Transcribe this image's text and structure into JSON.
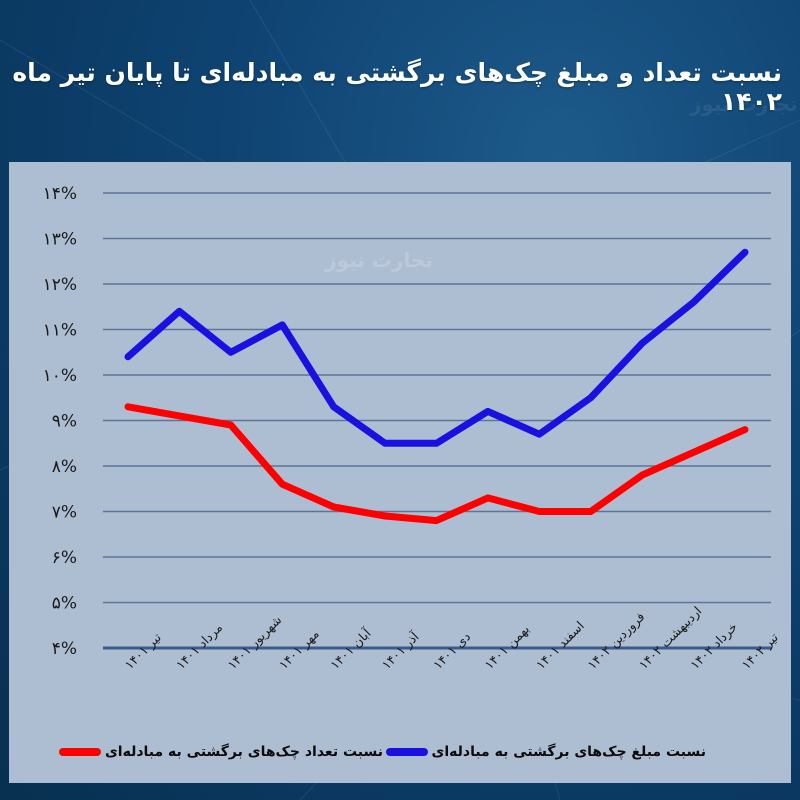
{
  "title": "نسبت تعداد و مبلغ چک‌های برگشتی به مبادله‌ای تا پایان تیر ماه ۱۴۰۲",
  "watermark": "تجارت نیوز",
  "colors": {
    "background": "#0f4473",
    "panel": "#aebed2",
    "grid": "#5a7596",
    "axis": "#3b5a8c",
    "series_count": "#ff0000",
    "series_amount": "#1a10e0"
  },
  "legend": [
    {
      "label": "نسبت مبلغ چک‌های برگشتی به مبادله‌ای",
      "color": "#1a10e0"
    },
    {
      "label": "نسبت تعداد چک‌های برگشتی به مبادله‌ای",
      "color": "#ff0000"
    }
  ],
  "chart_data": {
    "type": "line",
    "title": "نسبت تعداد و مبلغ چک‌های برگشتی به مبادله‌ای تا پایان تیر ماه ۱۴۰۲",
    "xlabel": "",
    "ylabel": "",
    "ylim": [
      4,
      14
    ],
    "y_ticks": [
      4,
      5,
      6,
      7,
      8,
      9,
      10,
      11,
      12,
      13,
      14
    ],
    "y_tick_labels": [
      "۴%",
      "۵%",
      "۶%",
      "۷%",
      "۸%",
      "۹%",
      "۱۰%",
      "۱۱%",
      "۱۲%",
      "۱۳%",
      "۱۴%"
    ],
    "grid": true,
    "legend_position": "bottom",
    "categories": [
      "تیر ۱۴۰۱",
      "مرداد ۱۴۰۱",
      "شهریور ۱۴۰۱",
      "مهر ۱۴۰۱",
      "آبان ۱۴۰۱",
      "آذر ۱۴۰۱",
      "دی ۱۴۰۱",
      "بهمن ۱۴۰۱",
      "اسفند ۱۴۰۱",
      "فروردین ۱۴۰۲",
      "اردیبهشت ۱۴۰۲",
      "خرداد ۱۴۰۲",
      "تیر ۱۴۰۲"
    ],
    "series": [
      {
        "name": "نسبت مبلغ چک‌های برگشتی به مبادله‌ای",
        "color": "#1a10e0",
        "values": [
          10.4,
          11.4,
          10.5,
          11.1,
          9.3,
          8.5,
          8.5,
          9.2,
          8.7,
          9.5,
          10.7,
          11.6,
          12.7
        ]
      },
      {
        "name": "نسبت تعداد چک‌های برگشتی به مبادله‌ای",
        "color": "#ff0000",
        "values": [
          9.3,
          9.1,
          8.9,
          7.6,
          7.1,
          6.9,
          6.8,
          7.3,
          7.0,
          7.0,
          7.8,
          8.3,
          8.8
        ]
      }
    ]
  }
}
